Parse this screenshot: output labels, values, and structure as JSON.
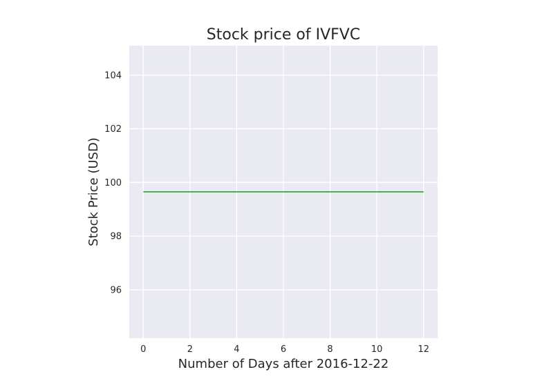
{
  "chart_data": {
    "type": "line",
    "title": "Stock price of IVFVC",
    "xlabel": "Number of Days after 2016-12-22",
    "ylabel": "Stock Price (USD)",
    "xlim": [
      -0.6,
      12.6
    ],
    "ylim": [
      94.2,
      105.1
    ],
    "xticks": [
      0,
      2,
      4,
      6,
      8,
      10,
      12
    ],
    "yticks": [
      96,
      98,
      100,
      102,
      104
    ],
    "grid": true,
    "series": [
      {
        "color": "#008000",
        "x": [
          0,
          12
        ],
        "y": [
          99.65,
          99.65
        ]
      }
    ]
  },
  "colors": {
    "plot_background": "#EAEAF2",
    "gridline": "#FFFFFF",
    "line": "#008000"
  }
}
